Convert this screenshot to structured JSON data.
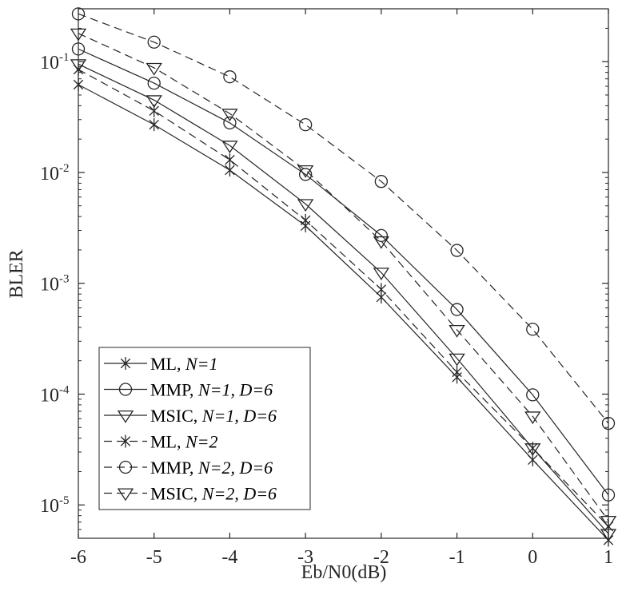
{
  "chart_data": {
    "type": "line",
    "xlabel": "Eb/N0(dB)",
    "ylabel": "BLER",
    "x": [
      -6,
      -5,
      -4,
      -3,
      -2,
      -1,
      0,
      1
    ],
    "xlim": [
      -6,
      1
    ],
    "ylim": [
      5e-06,
      0.3
    ],
    "yscale": "log",
    "x_tick_labels": [
      "-6",
      "-5",
      "-4",
      "-3",
      "-2",
      "-1",
      "0",
      "1"
    ],
    "y_ticks": [
      {
        "base": "10",
        "exp": "-5"
      },
      {
        "base": "10",
        "exp": "-4"
      },
      {
        "base": "10",
        "exp": "-3"
      },
      {
        "base": "10",
        "exp": "-2"
      },
      {
        "base": "10",
        "exp": "-1"
      }
    ],
    "grid": false,
    "legend_position": "bottom-left",
    "series": [
      {
        "name": "ML, N=1",
        "label_main": "ML, ",
        "label_italic": "N=1",
        "marker": "asterisk",
        "line": "solid",
        "values": [
          0.062,
          0.027,
          0.0105,
          0.0033,
          0.00075,
          0.000142,
          2.55e-05,
          4.8e-06
        ]
      },
      {
        "name": "MMP, N=1, D=6",
        "label_main": "MMP, ",
        "label_italic": "N=1, D=6",
        "marker": "circle",
        "line": "solid",
        "values": [
          0.13,
          0.064,
          0.028,
          0.0096,
          0.0027,
          0.00058,
          9.85e-05,
          1.23e-05
        ]
      },
      {
        "name": "MSIC, N=1, D=6",
        "label_main": "MSIC, ",
        "label_italic": "N=1, D=6",
        "marker": "triangle-down",
        "line": "solid",
        "values": [
          0.095,
          0.045,
          0.0175,
          0.0052,
          0.00125,
          0.00021,
          3.25e-05,
          5.5e-06
        ]
      },
      {
        "name": "ML, N=2",
        "label_main": "ML, ",
        "label_italic": "N=2",
        "marker": "asterisk",
        "line": "dashed",
        "values": [
          0.085,
          0.036,
          0.013,
          0.0037,
          0.00088,
          0.000158,
          3.25e-05,
          6.4e-06
        ]
      },
      {
        "name": "MMP, N=2, D=6",
        "label_main": "MMP, ",
        "label_italic": "N=2, D=6",
        "marker": "circle",
        "line": "dashed",
        "values": [
          0.27,
          0.15,
          0.073,
          0.027,
          0.0083,
          0.00198,
          0.000385,
          5.45e-05
        ]
      },
      {
        "name": "MSIC, N=2, D=6",
        "label_main": "MSIC, ",
        "label_italic": "N=2, D=6",
        "marker": "triangle-down",
        "line": "dashed",
        "values": [
          0.18,
          0.088,
          0.034,
          0.0105,
          0.0024,
          0.00038,
          6.3e-05,
          7.2e-06
        ]
      }
    ],
    "colors": {
      "line": "#262626",
      "axis": "#262626",
      "background": "#ffffff"
    }
  }
}
